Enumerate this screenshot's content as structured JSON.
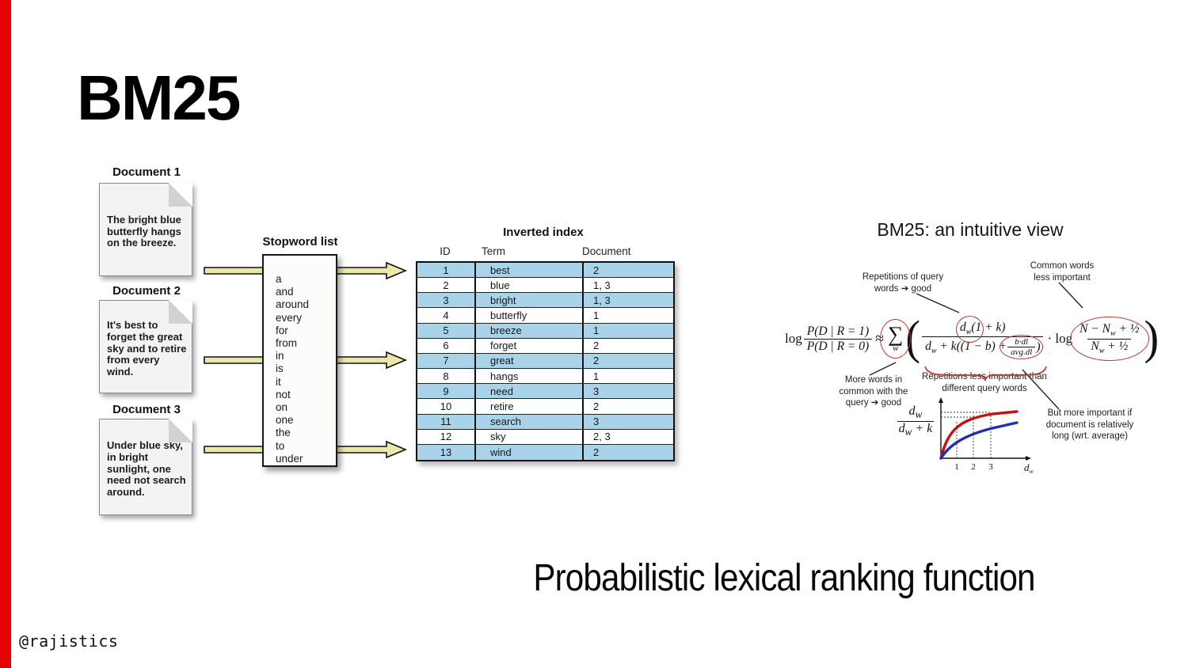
{
  "slide": {
    "title": "BM25",
    "subtitle": "Probabilistic lexical ranking function",
    "watermark": "@rajistics",
    "accent_color": "#e60000"
  },
  "documents": [
    {
      "label": "Document 1",
      "text": "The bright blue butterfly hangs on the breeze."
    },
    {
      "label": "Document 2",
      "text": "It's best to forget the great sky and to retire from every wind."
    },
    {
      "label": "Document 3",
      "text": "Under blue sky, in bright sunlight, one need not search around."
    }
  ],
  "stopword_list": {
    "title": "Stopword list",
    "words": [
      "a",
      "and",
      "around",
      "every",
      "for",
      "from",
      "in",
      "is",
      "it",
      "not",
      "on",
      "one",
      "the",
      "to",
      "under"
    ]
  },
  "inverted_index": {
    "title": "Inverted index",
    "columns": [
      "ID",
      "Term",
      "Document"
    ],
    "rows": [
      [
        "1",
        "best",
        "2"
      ],
      [
        "2",
        "blue",
        "1, 3"
      ],
      [
        "3",
        "bright",
        "1, 3"
      ],
      [
        "4",
        "butterfly",
        "1"
      ],
      [
        "5",
        "breeze",
        "1"
      ],
      [
        "6",
        "forget",
        "2"
      ],
      [
        "7",
        "great",
        "2"
      ],
      [
        "8",
        "hangs",
        "1"
      ],
      [
        "9",
        "need",
        "3"
      ],
      [
        "10",
        "retire",
        "2"
      ],
      [
        "11",
        "search",
        "3"
      ],
      [
        "12",
        "sky",
        "2, 3"
      ],
      [
        "13",
        "wind",
        "2"
      ]
    ],
    "row_highlight_color": "#a9d3e9",
    "arrow_color": "#ece8ab"
  },
  "intuitive_view": {
    "title": "BM25: an intuitive view",
    "annotation_color": "#c0392b",
    "annotations": {
      "top_left": "Repetitions of query\nwords ➔ good",
      "top_right": "Common words\nless important",
      "bottom_left": "More words in\ncommon with the\nquery ➔ good",
      "bottom_mid": "Repetitions less important than\ndifferent query words",
      "graph_right": "But more important if\ndocument is relatively\nlong (wrt. average)"
    },
    "formula": {
      "log": "log",
      "p_num": "P(D | R = 1)",
      "p_den": "P(D | R = 0)",
      "approx": "≈",
      "sigma": "∑",
      "sigma_sub": "w",
      "open_paren": "(",
      "num_d": "d",
      "num_d_sub": "w",
      "num_rest": "(1 + k)",
      "den_d": "d",
      "den_d_sub": "w",
      "den_mid": " + k((1 − b) + ",
      "small_num": "b·dl",
      "small_den": "avg.dl",
      "den_close": ")",
      "dot_log": "· log",
      "n_num_a": "N − N",
      "n_num_sub": "w",
      "n_num_b": " + ½",
      "n_den_a": "N",
      "n_den_sub": "w",
      "n_den_b": " + ½",
      "close_paren": ")"
    },
    "graph": {
      "ylabel_num": "d",
      "ylabel_num_sub": "w",
      "ylabel_den_a": "d",
      "ylabel_den_sub": "w",
      "ylabel_den_b": " + k",
      "xticks": [
        "1",
        "2",
        "3"
      ],
      "xlabel": "d",
      "xlabel_sub": "w",
      "upper_curve_color": "#c41111",
      "lower_curve_color": "#2030b0"
    }
  }
}
